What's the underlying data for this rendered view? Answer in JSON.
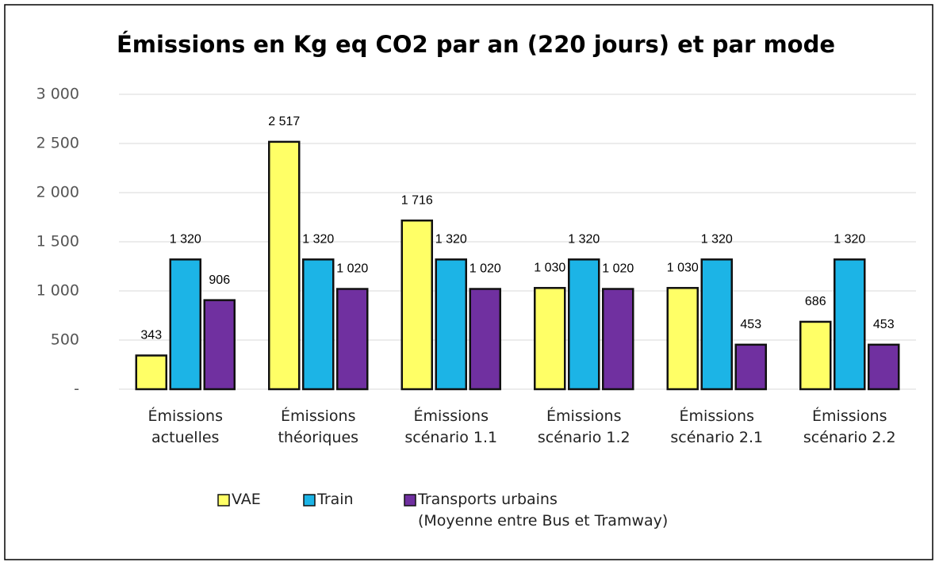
{
  "chart_data": {
    "type": "bar",
    "title": "Émissions en Kg eq CO2 par an (220 jours) et par mode",
    "categories": [
      "Émissions\nactuelles",
      "Émissions\nthéoriques",
      "Émissions\nscénario 1.1",
      "Émissions\nscénario 1.2",
      "Émissions\nscénario 2.1",
      "Émissions\nscénario 2.2"
    ],
    "series": [
      {
        "name": "VAE",
        "color": "#ffff66",
        "values": [
          343,
          2517,
          1716,
          1030,
          1030,
          686
        ],
        "value_labels": [
          "343",
          "2 517",
          "1 716",
          "1 030",
          "1 030",
          "686"
        ]
      },
      {
        "name": "Train",
        "color": "#1cb4e6",
        "values": [
          1320,
          1320,
          1320,
          1320,
          1320,
          1320
        ],
        "value_labels": [
          "1 320",
          "1 320",
          "1 320",
          "1 320",
          "1 320",
          "1 320"
        ]
      },
      {
        "name": "Transports urbains\n(Moyenne entre Bus et Tramway)",
        "color": "#7030a0",
        "values": [
          906,
          1020,
          1020,
          1020,
          453,
          453
        ],
        "value_labels": [
          "906",
          "1 020",
          "1 020",
          "1 020",
          "453",
          "453"
        ]
      }
    ],
    "ylim": [
      0,
      3000
    ],
    "yticks": [
      {
        "value": 0,
        "label": "-"
      },
      500,
      {
        "value": 1000,
        "label": "1 000"
      },
      {
        "value": 1500,
        "label": "1 500"
      },
      {
        "value": 2000,
        "label": "2 000"
      },
      {
        "value": 2500,
        "label": "2 500"
      },
      {
        "value": 3000,
        "label": "3 000"
      }
    ],
    "grid": true
  }
}
